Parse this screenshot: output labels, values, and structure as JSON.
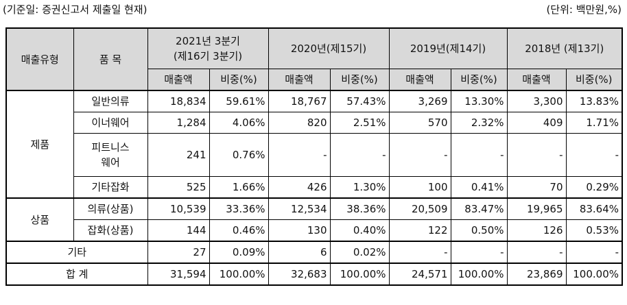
{
  "header": {
    "basis_note": "(기준일: 증권신고서 제출일 현재)",
    "unit_note": "(단위: 백만원,%)"
  },
  "columns": {
    "sales_type": "매출유형",
    "item": "품 목",
    "periods": [
      {
        "line1": "2021년 3분기",
        "line2": "(제16기 3분기)"
      },
      {
        "line1": "2020년(제15기)",
        "line2": ""
      },
      {
        "line1": "2019년(제14기)",
        "line2": ""
      },
      {
        "line1": "2018년 (제13기)",
        "line2": ""
      }
    ],
    "sales_label": "매출액",
    "ratio_label": "비중(%)"
  },
  "groups": {
    "products": "제품",
    "goods": "상품",
    "other": "기타",
    "total": "합 계"
  },
  "rows": [
    {
      "item": "일반의류",
      "cells": [
        "18,834",
        "59.61%",
        "18,767",
        "57.43%",
        "3,269",
        "13.30%",
        "3,300",
        "13.83%"
      ]
    },
    {
      "item": "이너웨어",
      "cells": [
        "1,284",
        "4.06%",
        "820",
        "2.51%",
        "570",
        "2.32%",
        "409",
        "1.71%"
      ]
    },
    {
      "item_line1": "피트니스",
      "item_line2": "웨어",
      "cells": [
        "241",
        "0.76%",
        "-",
        "-",
        "-",
        "-",
        "-",
        "-"
      ]
    },
    {
      "item": "기타잡화",
      "cells": [
        "525",
        "1.66%",
        "426",
        "1.30%",
        "100",
        "0.41%",
        "70",
        "0.29%"
      ]
    },
    {
      "item": "의류(상품)",
      "cells": [
        "10,539",
        "33.36%",
        "12,534",
        "38.36%",
        "20,509",
        "83.47%",
        "19,965",
        "83.64%"
      ]
    },
    {
      "item": "잡화(상품)",
      "cells": [
        "144",
        "0.46%",
        "130",
        "0.40%",
        "122",
        "0.50%",
        "126",
        "0.53%"
      ]
    },
    {
      "cells": [
        "27",
        "0.09%",
        "6",
        "0.02%",
        "-",
        "-",
        "-",
        "-"
      ]
    },
    {
      "cells": [
        "31,594",
        "100.00%",
        "32,683",
        "100.00%",
        "24,571",
        "100.00%",
        "23,869",
        "100.00%"
      ]
    }
  ]
}
